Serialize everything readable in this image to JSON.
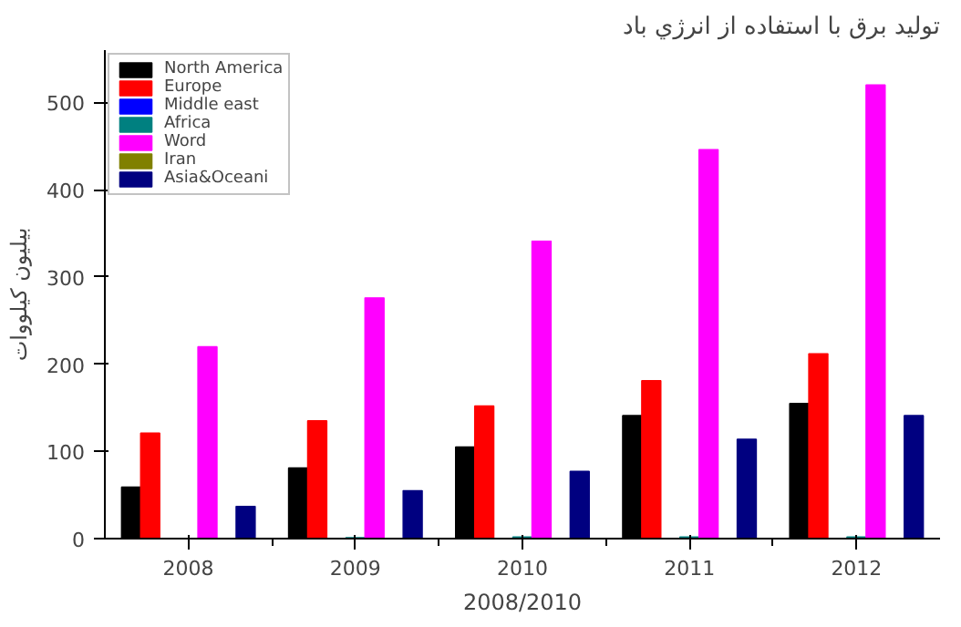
{
  "chart_data": {
    "type": "bar",
    "title": "توليد برق با استفاده از انرژي باد",
    "xlabel": "2008/2010",
    "ylabel": "بيليون كيلووات",
    "categories": [
      "2008",
      "2009",
      "2010",
      "2011",
      "2012"
    ],
    "series": [
      {
        "name": "North America",
        "color": "#000000",
        "values": [
          59,
          81,
          105,
          141,
          155
        ]
      },
      {
        "name": "Europe",
        "color": "#ff0000",
        "values": [
          121,
          135,
          152,
          181,
          212
        ]
      },
      {
        "name": "Middle east",
        "color": "#0000ff",
        "values": [
          0,
          0,
          0,
          0,
          0
        ]
      },
      {
        "name": "Africa",
        "color": "#008080",
        "values": [
          0,
          1,
          2,
          2,
          2
        ]
      },
      {
        "name": "Word",
        "color": "#ff00ff",
        "values": [
          220,
          276,
          341,
          446,
          520
        ]
      },
      {
        "name": "Iran",
        "color": "#808000",
        "values": [
          0,
          0,
          0,
          0,
          0
        ]
      },
      {
        "name": "Asia&Oceani",
        "color": "#000080",
        "values": [
          37,
          55,
          77,
          114,
          141
        ]
      }
    ],
    "ylim": [
      0,
      560
    ],
    "yticks": [
      0,
      100,
      200,
      300,
      400,
      500
    ],
    "grid": false,
    "legend": "top left"
  }
}
